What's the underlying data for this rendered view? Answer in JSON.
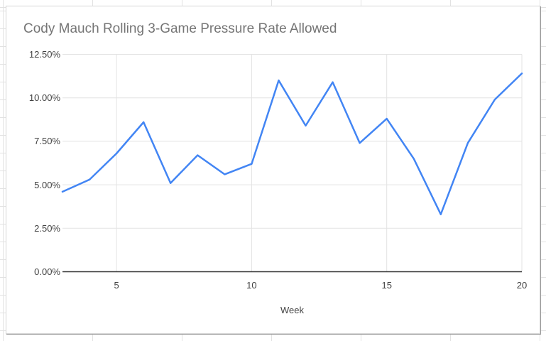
{
  "chart_data": {
    "type": "line",
    "title": "Cody Mauch Rolling 3-Game Pressure Rate Allowed",
    "xlabel": "Week",
    "ylabel": "",
    "x": [
      3,
      4,
      5,
      6,
      7,
      8,
      9,
      10,
      11,
      12,
      13,
      14,
      15,
      16,
      17,
      18,
      19,
      20
    ],
    "values": [
      4.6,
      5.3,
      6.8,
      8.6,
      5.1,
      6.7,
      5.6,
      6.2,
      11.0,
      8.4,
      10.9,
      7.4,
      8.8,
      6.5,
      3.3,
      7.4,
      9.9,
      11.4
    ],
    "xlim": [
      3,
      20
    ],
    "ylim": [
      0,
      12.5
    ],
    "x_ticks": [
      5,
      10,
      15,
      20
    ],
    "y_ticks": [
      0,
      2.5,
      5,
      7.5,
      10,
      12.5
    ],
    "y_tick_labels": [
      "0.00%",
      "2.50%",
      "5.00%",
      "7.50%",
      "10.00%",
      "12.50%"
    ],
    "grid": true,
    "legend_position": "none"
  },
  "colors": {
    "line": "#4285f4",
    "gridline": "#e3e3e3",
    "axis_line": "#333333",
    "title_text": "#757575",
    "tick_text": "#424242"
  }
}
